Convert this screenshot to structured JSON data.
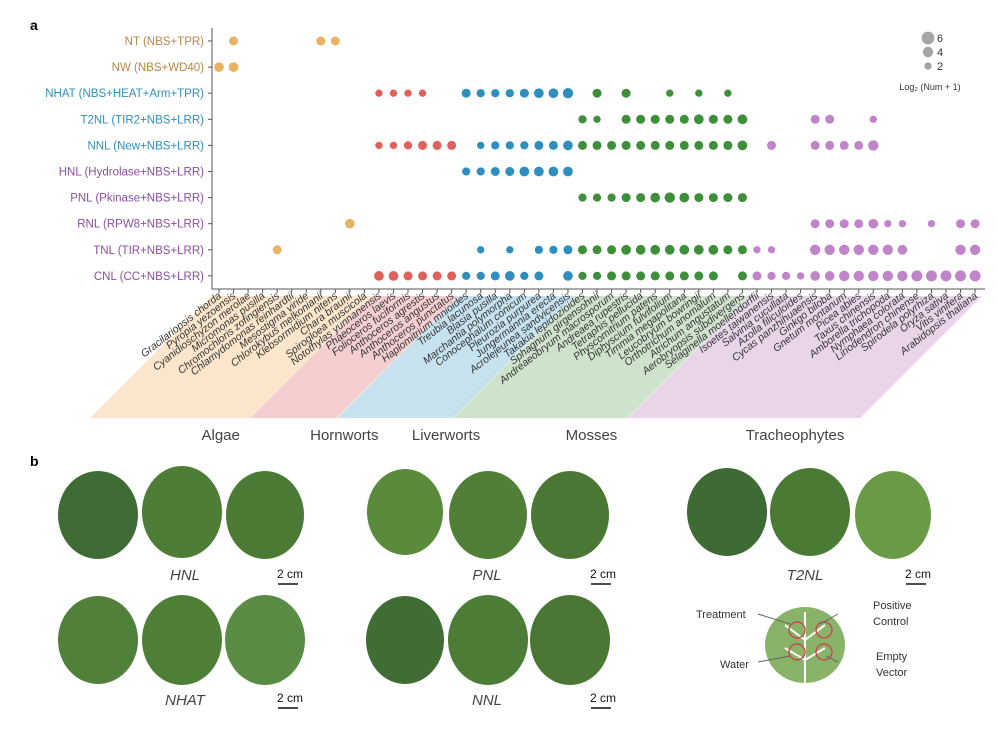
{
  "chart_data": {
    "type": "dot",
    "panel": "a",
    "legend_title": "Log₂ (Num + 1)",
    "legend_sizes": [
      6,
      4,
      2
    ],
    "groups": [
      {
        "name": "Algae",
        "color": "#e8b464",
        "band": "#fbe6cc",
        "species": [
          "Gracilariopsis chorda",
          "Pyropia yezoensis",
          "Cyanidioschyzon merolae",
          "Micromonas pusilla",
          "Chromochloris zofingiensis",
          "Chlamydomonas reinhardtii",
          "Mesostigma viride",
          "Chlorokybus melkonianii",
          "Klebsormidium nitens",
          "Chara braunii",
          "Spirogloea muscicola"
        ]
      },
      {
        "name": "Hornworts",
        "color": "#e0605a",
        "band": "#f5cfcf",
        "species": [
          "Notothylas yunnanensis",
          "Phaeoceros laevis",
          "Folioceros fuciformis",
          "Anthoceros agrestis",
          "Anthoceros angustus",
          "Anthoceros punctatus"
        ]
      },
      {
        "name": "Liverworts",
        "color": "#2e8fbf",
        "band": "#c5e2ee",
        "species": [
          "Haplomitrium mnioides",
          "Treubia lacunosa",
          "Blasia pusilla",
          "Marchantia polymorpha",
          "Conocephalum conicum",
          "Pleurozia purpurea",
          "Jungermannia erecta",
          "Acrolejeunea sandvicensis"
        ]
      },
      {
        "name": "Mosses",
        "color": "#3e8f3a",
        "band": "#cfe3cc",
        "species": [
          "Takakia lepidozioides",
          "Sphagnum girgensohnii",
          "Andreaeobryum macrosporum",
          "Andreaea rupestris",
          "Tetraphis pellucida",
          "Physcomitrium patens",
          "Diphyscium fulvifolium",
          "Timmia megapolitana",
          "Leucobryum bowringii",
          "Orthotrichum anomalum",
          "Atrichum angustatum",
          "Aerobryopsis subdivergens"
        ]
      },
      {
        "name": "Tracheophytes",
        "color": "#c085c8",
        "band": "#e8d5ea",
        "species": [
          "Selaginella moellendorffii",
          "Isoetes taiwanensis",
          "Salvinia cucullata",
          "Azolla filiculoides",
          "Cycas panzhihuaensis",
          "Ginkgo biloba",
          "Gnetum montanum",
          "Picea abies",
          "Taxus chinensis",
          "Amborella trichopoda",
          "Nymphaea colorata",
          "Liriodendron chinense",
          "Spirodela polyrhiza",
          "Oryza sativa",
          "Vitis vinifera",
          "Arabidopsis thaliana"
        ]
      }
    ],
    "rows": [
      {
        "name": "NT (NBS+TPR)",
        "color": "#b8864a",
        "values": [
          null,
          3,
          null,
          null,
          null,
          null,
          null,
          3,
          3,
          null,
          null,
          null,
          null,
          null,
          null,
          null,
          null,
          null,
          null,
          null,
          null,
          null,
          null,
          null,
          null,
          null,
          null,
          null,
          null,
          null,
          null,
          null,
          null,
          null,
          null,
          null,
          null,
          null,
          null,
          null,
          null,
          null,
          null,
          null,
          null,
          null,
          null,
          null,
          null,
          null,
          null,
          null,
          null
        ]
      },
      {
        "name": "NW (NBS+WD40)",
        "color": "#b8864a",
        "values": [
          3.5,
          3.5,
          null,
          null,
          null,
          null,
          null,
          null,
          null,
          null,
          null,
          null,
          null,
          null,
          null,
          null,
          null,
          null,
          null,
          null,
          null,
          null,
          null,
          null,
          null,
          null,
          null,
          null,
          null,
          null,
          null,
          null,
          null,
          null,
          null,
          null,
          null,
          null,
          null,
          null,
          null,
          null,
          null,
          null,
          null,
          null,
          null,
          null,
          null,
          null,
          null,
          null,
          null
        ]
      },
      {
        "name": "NHAT (NBS+HEAT+Arm+TPR)",
        "color": "#2e8fbf",
        "values": [
          null,
          null,
          null,
          null,
          null,
          null,
          null,
          null,
          null,
          null,
          null,
          2,
          2,
          2,
          2,
          null,
          null,
          3,
          2.5,
          2.5,
          2.5,
          3,
          3.5,
          3.5,
          4,
          null,
          3,
          null,
          3,
          null,
          null,
          2,
          null,
          2,
          null,
          2,
          null,
          null,
          null,
          null,
          null,
          null,
          null,
          null,
          null,
          null,
          null,
          null,
          null,
          null,
          null,
          null,
          null
        ]
      },
      {
        "name": "T2NL (TIR2+NBS+LRR)",
        "color": "#2e8fbf",
        "values": [
          null,
          null,
          null,
          null,
          null,
          null,
          null,
          null,
          null,
          null,
          null,
          null,
          null,
          null,
          null,
          null,
          null,
          null,
          null,
          null,
          null,
          null,
          null,
          null,
          null,
          2.5,
          2,
          null,
          3,
          3,
          3,
          3,
          3,
          3.5,
          3,
          3,
          3.5,
          null,
          null,
          null,
          null,
          3,
          3,
          null,
          null,
          2,
          null,
          null,
          null,
          null,
          null,
          null,
          null
        ]
      },
      {
        "name": "NNL (New+NBS+LRR)",
        "color": "#2e8fbf",
        "values": [
          null,
          null,
          null,
          null,
          null,
          null,
          null,
          null,
          null,
          null,
          null,
          2,
          2,
          2.5,
          3,
          3,
          3,
          null,
          2,
          2.5,
          2.5,
          2.5,
          3,
          3,
          3.5,
          3,
          3,
          3,
          3,
          3,
          3,
          3,
          3,
          3,
          3,
          3,
          3.5,
          null,
          3,
          null,
          null,
          3,
          3,
          3,
          3,
          4,
          null,
          null,
          null,
          null,
          null,
          null,
          null
        ]
      },
      {
        "name": "HNL (Hydrolase+NBS+LRR)",
        "color": "#8c4fa0",
        "values": [
          null,
          null,
          null,
          null,
          null,
          null,
          null,
          null,
          null,
          null,
          null,
          null,
          null,
          null,
          null,
          null,
          null,
          2.5,
          2.5,
          3,
          3,
          3.5,
          3.5,
          3.5,
          3.5,
          null,
          null,
          null,
          null,
          null,
          null,
          null,
          null,
          null,
          null,
          null,
          null,
          null,
          null,
          null,
          null,
          null,
          null,
          null,
          null,
          null,
          null,
          null,
          null,
          null,
          null,
          null,
          null
        ]
      },
      {
        "name": "PNL (Pkinase+NBS+LRR)",
        "color": "#8c4fa0",
        "values": [
          null,
          null,
          null,
          null,
          null,
          null,
          null,
          null,
          null,
          null,
          null,
          null,
          null,
          null,
          null,
          null,
          null,
          null,
          null,
          null,
          null,
          null,
          null,
          null,
          null,
          2.5,
          2.5,
          2.5,
          3,
          3,
          3.5,
          4,
          3.5,
          3,
          3,
          3,
          3,
          null,
          null,
          null,
          null,
          null,
          null,
          null,
          null,
          null,
          null,
          null,
          null,
          null,
          null,
          null,
          null
        ]
      },
      {
        "name": "RNL (RPW8+NBS+LRR)",
        "color": "#8c4fa0",
        "values": [
          null,
          null,
          null,
          null,
          null,
          null,
          null,
          null,
          null,
          3.5,
          null,
          null,
          null,
          null,
          null,
          null,
          null,
          null,
          null,
          null,
          null,
          null,
          null,
          null,
          null,
          null,
          null,
          null,
          null,
          null,
          null,
          null,
          null,
          null,
          null,
          null,
          null,
          null,
          null,
          null,
          null,
          3,
          3,
          3,
          3,
          3.5,
          2,
          2,
          null,
          2,
          null,
          3,
          3
        ]
      },
      {
        "name": "TNL (TIR+NBS+LRR)",
        "color": "#8c4fa0",
        "values": [
          null,
          null,
          null,
          null,
          3,
          null,
          null,
          null,
          null,
          null,
          null,
          null,
          null,
          null,
          null,
          null,
          null,
          null,
          2,
          null,
          2,
          null,
          2.5,
          2.5,
          3,
          3,
          3,
          3,
          3.5,
          3.5,
          3.5,
          3.5,
          3.5,
          3.5,
          3.5,
          3,
          3,
          2,
          2,
          null,
          null,
          4,
          4,
          4,
          4,
          4,
          4,
          3.5,
          null,
          null,
          null,
          4,
          4
        ]
      },
      {
        "name": "CNL (CC+NBS+LRR)",
        "color": "#8c4fa0",
        "values": [
          null,
          null,
          null,
          null,
          null,
          null,
          null,
          null,
          null,
          null,
          null,
          3.5,
          3.5,
          3,
          3,
          3,
          3,
          2.5,
          2.5,
          3,
          3.5,
          2.5,
          3,
          null,
          3.5,
          2.5,
          2.5,
          3,
          3,
          3,
          3,
          3,
          3,
          3,
          3,
          null,
          3,
          3,
          2.5,
          2.5,
          2,
          3.5,
          3.5,
          4,
          4,
          4,
          4,
          4,
          4.5,
          4.5,
          4.5,
          4.5,
          4.5
        ]
      }
    ]
  },
  "panel_b": {
    "label": "b",
    "leaves": [
      {
        "name": "HNL",
        "scale": "2 cm"
      },
      {
        "name": "PNL",
        "scale": "2 cm"
      },
      {
        "name": "T2NL",
        "scale": "2 cm"
      },
      {
        "name": "NHAT",
        "scale": "2 cm"
      },
      {
        "name": "NNL",
        "scale": "2 cm"
      }
    ],
    "diagram": {
      "treatment": "Treatment",
      "positive": "Positive",
      "control": "Control",
      "water": "Water",
      "empty": "Empty",
      "vector": "Vector"
    }
  }
}
